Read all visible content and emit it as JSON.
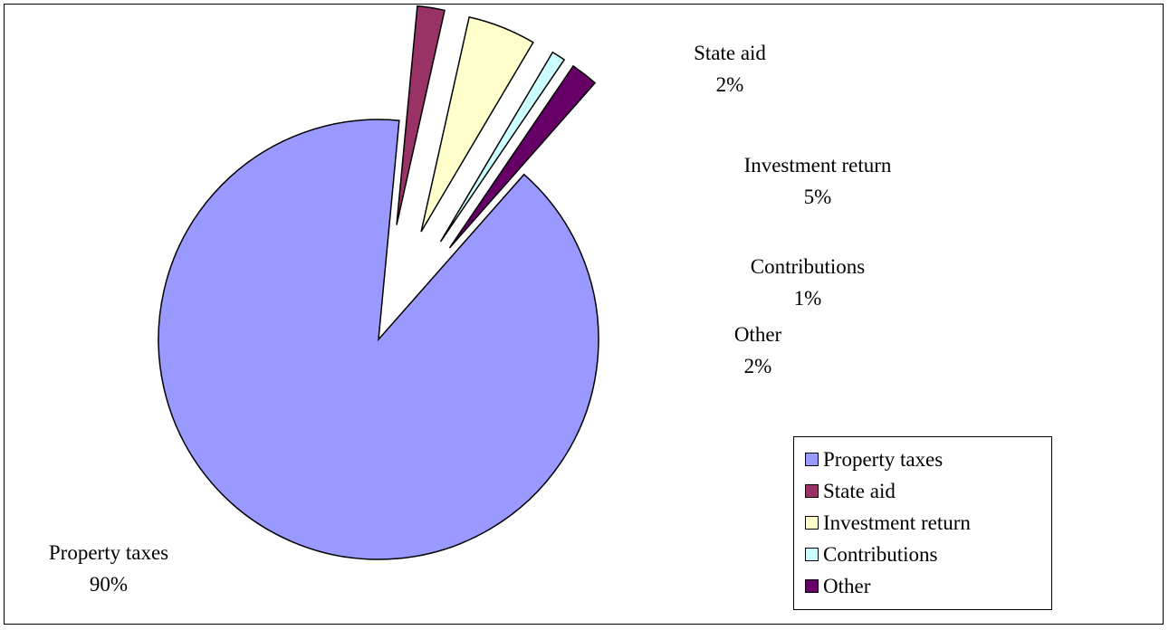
{
  "chart_data": {
    "type": "pie",
    "title": "",
    "slices": [
      {
        "label": "Property taxes",
        "value": 90,
        "display": "90%",
        "color": "#9999ff"
      },
      {
        "label": "State aid",
        "value": 2,
        "display": "2%",
        "color": "#993366"
      },
      {
        "label": "Investment return",
        "value": 5,
        "display": "5%",
        "color": "#ffffcc"
      },
      {
        "label": "Contributions",
        "value": 1,
        "display": "1%",
        "color": "#ccffff"
      },
      {
        "label": "Other",
        "value": 2,
        "display": "2%",
        "color": "#660066"
      }
    ],
    "legend_position": "bottom-right",
    "exploded_slices": [
      "State aid",
      "Investment return",
      "Contributions",
      "Other"
    ]
  },
  "legend": {
    "items": [
      {
        "label": "Property taxes",
        "color": "#9999ff"
      },
      {
        "label": "State aid",
        "color": "#993366"
      },
      {
        "label": "Investment return",
        "color": "#ffffcc"
      },
      {
        "label": "Contributions",
        "color": "#ccffff"
      },
      {
        "label": "Other",
        "color": "#660066"
      }
    ]
  }
}
